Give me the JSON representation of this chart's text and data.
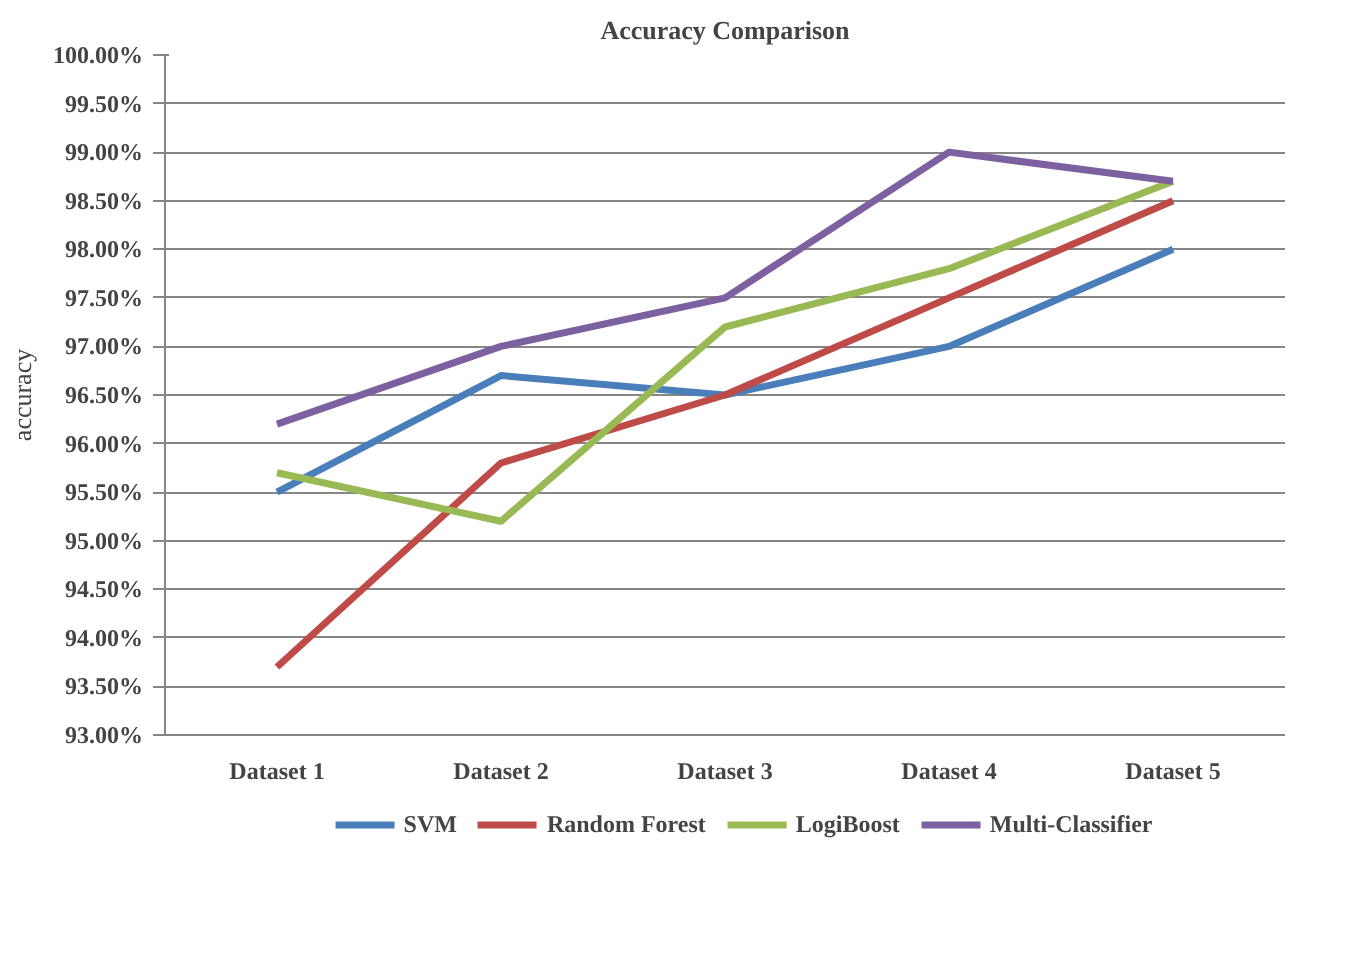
{
  "chart_data": {
    "type": "line",
    "title": "Accuracy Comparison",
    "ylabel": "accuracy",
    "categories": [
      "Dataset 1",
      "Dataset 2",
      "Dataset 3",
      "Dataset 4",
      "Dataset 5"
    ],
    "series": [
      {
        "name": "SVM",
        "color": "#4a7ebb",
        "values": [
          95.5,
          96.7,
          96.5,
          97.0,
          98.0
        ]
      },
      {
        "name": "Random Forest",
        "color": "#be4b48",
        "values": [
          93.7,
          95.8,
          96.5,
          97.5,
          98.5
        ]
      },
      {
        "name": "LogiBoost",
        "color": "#98b954",
        "values": [
          95.7,
          95.2,
          97.2,
          97.8,
          98.7
        ]
      },
      {
        "name": "Multi-Classifier",
        "color": "#7d60a0",
        "values": [
          96.2,
          97.0,
          97.5,
          99.0,
          98.7
        ]
      }
    ],
    "ylim": [
      93,
      100
    ],
    "yticks": [
      {
        "value": 93,
        "label": "93.00%"
      },
      {
        "value": 93.5,
        "label": "93.50%"
      },
      {
        "value": 94,
        "label": "94.00%"
      },
      {
        "value": 94.5,
        "label": "94.50%"
      },
      {
        "value": 95,
        "label": "95.00%"
      },
      {
        "value": 95.5,
        "label": "95.50%"
      },
      {
        "value": 96,
        "label": "96.00%"
      },
      {
        "value": 96.5,
        "label": "96.50%"
      },
      {
        "value": 97,
        "label": "97.00%"
      },
      {
        "value": 97.5,
        "label": "97.50%"
      },
      {
        "value": 98,
        "label": "98.00%"
      },
      {
        "value": 98.5,
        "label": "98.50%"
      },
      {
        "value": 99,
        "label": "99.00%"
      },
      {
        "value": 99.5,
        "label": "99.50%"
      },
      {
        "value": 100,
        "label": "100.00%"
      }
    ],
    "grid": "y",
    "legend": "bottom",
    "marker": "none",
    "line_style": "solid"
  }
}
